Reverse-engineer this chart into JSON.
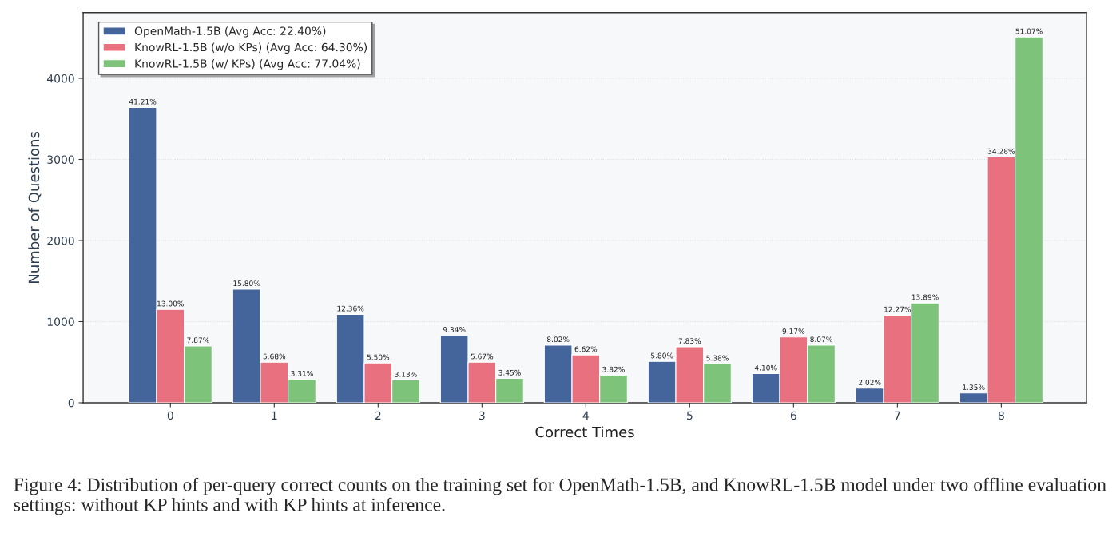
{
  "chart_data": {
    "type": "bar",
    "xlabel": "Correct Times",
    "ylabel": "Number of Questions",
    "categories": [
      "0",
      "1",
      "2",
      "3",
      "4",
      "5",
      "6",
      "7",
      "8"
    ],
    "series": [
      {
        "name": "OpenMath-1.5B (Avg Acc: 22.40%)",
        "color": "#44649c",
        "values": [
          3640,
          1400,
          1090,
          830,
          710,
          510,
          360,
          180,
          120
        ]
      },
      {
        "name": "KnowRL-1.5B (w/o KPs) (Avg Acc: 64.30%)",
        "color": "#e8707f",
        "values": [
          1150,
          500,
          490,
          500,
          590,
          690,
          810,
          1080,
          3030
        ]
      },
      {
        "name": "KnowRL-1.5B (w/ KPs) (Avg Acc: 77.04%)",
        "color": "#7dc47a",
        "values": [
          700,
          290,
          280,
          300,
          340,
          480,
          710,
          1230,
          4510
        ]
      }
    ],
    "ylim": [
      0,
      4810
    ],
    "yticks": [
      0,
      1000,
      2000,
      3000,
      4000
    ],
    "grid": "y",
    "legend": "top left",
    "annotations": [
      "41.21%",
      "15.80%",
      "12.36%",
      "9.34%",
      "8.02%",
      "5.80%",
      "4.10%",
      "2.02%",
      "1.35%",
      "13.00%",
      "5.68%",
      "5.50%",
      "5.67%",
      "6.62%",
      "7.83%",
      "9.17%",
      "12.27%",
      "34.28%",
      "7.87%",
      "3.31%",
      "3.13%",
      "3.45%",
      "3.82%",
      "5.38%",
      "8.07%",
      "13.89%",
      "51.07%",
      "Figure 4: Distribution of per-query correct counts on the training set for OpenMath-1.5B, and KnowRL-1.5B model under two offline evaluation settings: without KP hints and with KP hints at inference."
    ]
  }
}
